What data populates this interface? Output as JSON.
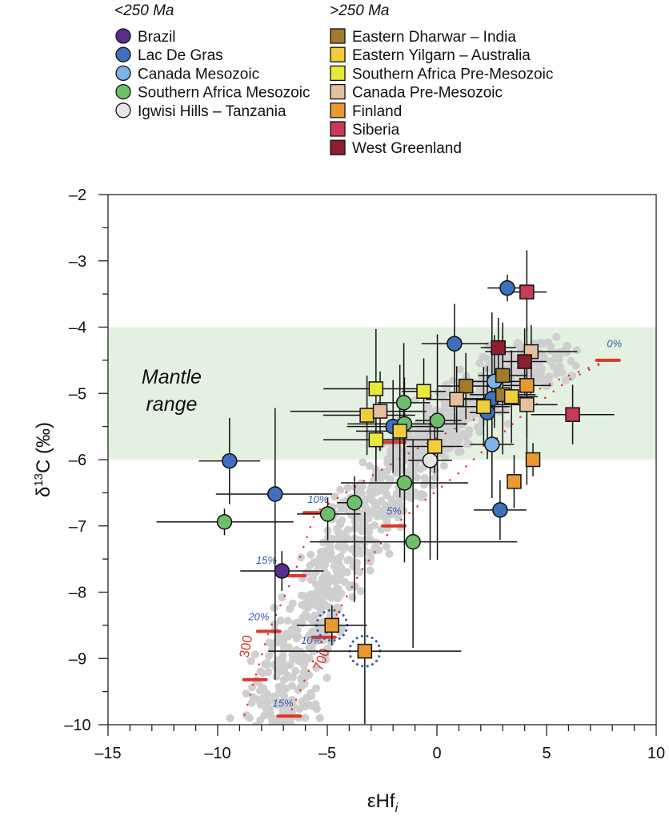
{
  "legend": {
    "groups": [
      {
        "title": "<250 Ma",
        "marker": "circle",
        "items": [
          "Brazil",
          "Lac De Gras",
          "Canada Mesozoic",
          "Southern Africa Mesozoic",
          "Igwisi Hills – Tanzania"
        ]
      },
      {
        "title": ">250 Ma",
        "marker": "square",
        "items": [
          "Eastern Dharwar – India",
          "Eastern Yilgarn – Australia",
          "Southern Africa Pre-Mesozoic",
          "Canada Pre-Mesozoic",
          "Finland",
          "Siberia",
          "West Greenland"
        ]
      }
    ]
  },
  "chart_data": {
    "type": "scatter",
    "xlabel": "εHf",
    "xlabel_sub": "i",
    "ylabel": "δ",
    "ylabel_sup": "13",
    "ylabel_rest": "C (‰)",
    "xlim": [
      -15,
      10
    ],
    "ylim": [
      -10,
      -2
    ],
    "xticks": [
      -15,
      -10,
      -5,
      0,
      5,
      10
    ],
    "xtick_labels": [
      "–15",
      "–10",
      "–5",
      "0",
      "5",
      "10"
    ],
    "yticks": [
      -2,
      -3,
      -4,
      -5,
      -6,
      -7,
      -8,
      -9,
      -10
    ],
    "ytick_labels": [
      "–2",
      "–3",
      "–4",
      "–5",
      "–6",
      "–7",
      "–8",
      "–9",
      "–10"
    ],
    "grid": false,
    "legend_placement": "top",
    "mantle_range": {
      "label_line1": "Mantle",
      "label_line2": "range",
      "y_from": -6,
      "y_to": -4,
      "color": "#e3f1e1",
      "label_x": -12.1,
      "label_y": -4.95
    },
    "background_cloud_color": "#cfcfcf",
    "model_curves": [
      {
        "label": "300",
        "color": "#e0352b",
        "label_x": -8.6,
        "label_y": -9.0,
        "label_rotate": -80,
        "path": [
          [
            7.8,
            -4.5
          ],
          [
            5.5,
            -4.8
          ],
          [
            3,
            -5.2
          ],
          [
            1,
            -5.5
          ],
          [
            -1,
            -5.85
          ],
          [
            -3,
            -6.25
          ],
          [
            -5.55,
            -6.8
          ],
          [
            -6.53,
            -7.75
          ],
          [
            -7.67,
            -8.59
          ],
          [
            -8.3,
            -9.3
          ],
          [
            -8.9,
            -10
          ]
        ]
      },
      {
        "label": "700",
        "color": "#e0352b",
        "label_x": -5.25,
        "label_y": -9.2,
        "label_rotate": -70,
        "path": [
          [
            7.8,
            -4.5
          ],
          [
            6,
            -4.8
          ],
          [
            4,
            -5.3
          ],
          [
            2.5,
            -5.75
          ],
          [
            1,
            -6.2
          ],
          [
            -0.5,
            -6.6
          ],
          [
            -1.97,
            -7.0
          ],
          [
            -3.5,
            -7.7
          ],
          [
            -5.15,
            -8.68
          ],
          [
            -6.0,
            -9.3
          ],
          [
            -6.74,
            -9.87
          ]
        ]
      }
    ],
    "model_marks": [
      {
        "label": "0%",
        "x": 7.8,
        "y": -4.5,
        "label_x": 7.75,
        "label_y": -4.3
      },
      {
        "label": "10%",
        "x": -5.55,
        "y": -6.8,
        "label_x": -5.9,
        "label_y": -6.65
      },
      {
        "label": "5%",
        "x": -1.97,
        "y": -7.0,
        "label_x": -2.3,
        "label_y": -6.83
      },
      {
        "label": "15%",
        "x": -6.53,
        "y": -7.75,
        "label_x": -8.25,
        "label_y": -7.57
      },
      {
        "label": "20%",
        "x": -7.67,
        "y": -8.59,
        "label_x": -8.6,
        "label_y": -8.42
      },
      {
        "label": "10%",
        "x": -5.15,
        "y": -8.68,
        "label_x": -6.2,
        "label_y": -8.78
      },
      {
        "label": "15%",
        "x": -6.74,
        "y": -9.87,
        "label_x": -7.5,
        "label_y": -9.73
      },
      {
        "label": "",
        "x": -8.3,
        "y": -9.32
      },
      {
        "label": "",
        "x": -1.97,
        "y": -5.74
      }
    ],
    "highlight_rings": [
      {
        "x": -4.79,
        "y": -8.5
      },
      {
        "x": -3.29,
        "y": -8.89
      }
    ],
    "series": [
      {
        "name": "Brazil",
        "marker": "circle",
        "color": "#5b2d8e",
        "points": [
          {
            "x": -7.07,
            "y": -7.68,
            "xerr": [
              1.9,
              1.9
            ],
            "yerr": [
              0.3,
              0.3
            ]
          }
        ]
      },
      {
        "name": "Lac De Gras",
        "marker": "circle",
        "color": "#3f6fbf",
        "points": [
          {
            "x": 3.21,
            "y": -3.41,
            "xerr": [
              0.9,
              0.85
            ],
            "yerr": [
              0.2,
              0.2
            ]
          },
          {
            "x": 0.8,
            "y": -4.25,
            "xerr": [
              1.5,
              1.55
            ],
            "yerr": [
              1.2,
              0.6
            ]
          },
          {
            "x": 2.51,
            "y": -5.08,
            "xerr": [
              1.4,
              1.2
            ],
            "yerr": [
              1.5,
              1.3
            ]
          },
          {
            "x": 2.3,
            "y": -5.29,
            "xerr": [
              0.8,
              1.0
            ],
            "yerr": [
              0.7,
              0.7
            ]
          },
          {
            "x": -2.0,
            "y": -5.5,
            "xerr": [
              2.1,
              2.1
            ],
            "yerr": [
              0.7,
              0.7
            ]
          },
          {
            "x": -9.46,
            "y": -6.02,
            "xerr": [
              1.4,
              1.4
            ],
            "yerr": [
              0.65,
              0.65
            ]
          },
          {
            "x": -7.38,
            "y": -6.52,
            "xerr": [
              2.7,
              2.6
            ],
            "yerr": [
              2.8,
              1.3
            ]
          },
          {
            "x": 2.88,
            "y": -6.76,
            "xerr": [
              1.2,
              1.2
            ],
            "yerr": [
              0.45,
              0.45
            ]
          }
        ]
      },
      {
        "name": "Canada Mesozoic",
        "marker": "circle",
        "color": "#7fb2e5",
        "points": [
          {
            "x": 2.62,
            "y": -4.82,
            "xerr": [
              1.3,
              1.3
            ],
            "yerr": [
              0.7,
              0.7
            ]
          },
          {
            "x": 2.51,
            "y": -5.77,
            "xerr": [
              1.0,
              1.0
            ],
            "yerr": [
              0.6,
              0.6
            ]
          }
        ]
      },
      {
        "name": "Southern Africa Mesozoic",
        "marker": "circle",
        "color": "#6fbf6a",
        "points": [
          {
            "x": -1.51,
            "y": -5.14,
            "xerr": [
              1.2,
              1.2
            ],
            "yerr": [
              1.2,
              0.9
            ]
          },
          {
            "x": -1.48,
            "y": -5.46,
            "xerr": [
              2.6,
              2.85
            ],
            "yerr": [
              0.7,
              0.7
            ]
          },
          {
            "x": 0.02,
            "y": -5.41,
            "xerr": [
              1.0,
              1.1
            ],
            "yerr": [
              2.1,
              1.3
            ]
          },
          {
            "x": -1.48,
            "y": -6.35,
            "xerr": [
              2.9,
              2.9
            ],
            "yerr": [
              1.2,
              1.0
            ]
          },
          {
            "x": -3.76,
            "y": -6.65,
            "xerr": [
              0.8,
              0.35
            ],
            "yerr": [
              1.5,
              0.4
            ]
          },
          {
            "x": -4.98,
            "y": -6.82,
            "xerr": [
              1.4,
              1.5
            ],
            "yerr": [
              0.4,
              0.25
            ]
          },
          {
            "x": -9.69,
            "y": -6.94,
            "xerr": [
              3.1,
              3.15
            ],
            "yerr": [
              0.2,
              0.2
            ]
          },
          {
            "x": -1.09,
            "y": -7.24,
            "xerr": [
              4.7,
              4.75
            ],
            "yerr": [
              1.6,
              1.55
            ]
          }
        ]
      },
      {
        "name": "Igwisi Hills – Tanzania",
        "marker": "circle",
        "color": "#e6e6e6",
        "points": [
          {
            "x": -0.31,
            "y": -6.01,
            "xerr": [
              1.0,
              1.0
            ],
            "yerr": [
              1.5,
              0.66
            ]
          }
        ]
      },
      {
        "name": "Eastern Dharwar – India",
        "marker": "square",
        "color": "#a47a2c",
        "points": [
          {
            "x": 1.32,
            "y": -4.89,
            "xerr": [
              1.3,
              1.6
            ],
            "yerr": [
              0.5,
              0.5
            ]
          },
          {
            "x": 3.0,
            "y": -4.73,
            "xerr": [
              1.1,
              1.1
            ],
            "yerr": [
              0.8,
              0.8
            ]
          },
          {
            "x": 3.0,
            "y": -5.02,
            "xerr": [
              1.5,
              1.5
            ],
            "yerr": [
              0.9,
              0.9
            ]
          }
        ]
      },
      {
        "name": "Eastern Yilgarn – Australia",
        "marker": "square",
        "color": "#f2cd3a",
        "points": [
          {
            "x": -3.19,
            "y": -5.33,
            "xerr": [
              2.0,
              2.2
            ],
            "yerr": [
              0.6,
              0.6
            ]
          },
          {
            "x": -1.69,
            "y": -5.57,
            "xerr": [
              2.0,
              2.0
            ],
            "yerr": [
              1.0,
              1.0
            ]
          },
          {
            "x": -0.1,
            "y": -5.8,
            "xerr": [
              1.3,
              1.3
            ],
            "yerr": [
              0.4,
              0.4
            ]
          },
          {
            "x": 2.13,
            "y": -5.2,
            "xerr": [
              1.2,
              1.2
            ],
            "yerr": [
              0.6,
              0.6
            ]
          },
          {
            "x": 3.4,
            "y": -5.05,
            "xerr": [
              1.2,
              1.2
            ],
            "yerr": [
              0.7,
              0.7
            ]
          }
        ]
      },
      {
        "name": "Southern Africa Pre-Mesozoic",
        "marker": "square",
        "color": "#e8e83a",
        "points": [
          {
            "x": -2.78,
            "y": -4.93,
            "xerr": [
              2.4,
              2.5
            ],
            "yerr": [
              1.4,
              0.9
            ]
          },
          {
            "x": -0.6,
            "y": -4.97,
            "xerr": [
              1.0,
              1.0
            ],
            "yerr": [
              0.5,
              0.5
            ]
          },
          {
            "x": -2.78,
            "y": -5.7,
            "xerr": [
              2.4,
              2.6
            ],
            "yerr": [
              0.3,
              0.3
            ]
          }
        ]
      },
      {
        "name": "Canada Pre-Mesozoic",
        "marker": "square",
        "color": "#e3c0a0",
        "points": [
          {
            "x": -2.59,
            "y": -5.27,
            "xerr": [
              4.1,
              2.1
            ],
            "yerr": [
              0.6,
              0.6
            ]
          },
          {
            "x": 0.9,
            "y": -5.09,
            "xerr": [
              1.4,
              1.4
            ],
            "yerr": [
              0.5,
              0.5
            ]
          },
          {
            "x": 4.3,
            "y": -4.37,
            "xerr": [
              2.1,
              2.1
            ],
            "yerr": [
              0.4,
              0.4
            ]
          },
          {
            "x": 4.1,
            "y": -5.17,
            "xerr": [
              1.4,
              1.4
            ],
            "yerr": [
              0.5,
              0.5
            ]
          }
        ]
      },
      {
        "name": "Finland",
        "marker": "square",
        "color": "#e89a30",
        "points": [
          {
            "x": 4.1,
            "y": -4.88,
            "xerr": [
              1.1,
              1.1
            ],
            "yerr": [
              1.5,
              0.9
            ]
          },
          {
            "x": 4.38,
            "y": -6.0,
            "xerr": [
              0.3,
              0.3
            ],
            "yerr": [
              0.25,
              0.25
            ]
          },
          {
            "x": 3.52,
            "y": -6.33,
            "xerr": [
              0.3,
              0.3
            ],
            "yerr": [
              0.4,
              0.4
            ]
          },
          {
            "x": -4.79,
            "y": -8.5,
            "xerr": [
              1.6,
              1.6
            ],
            "yerr": [
              0.3,
              0.3
            ]
          },
          {
            "x": -3.29,
            "y": -8.89,
            "xerr": [
              4.4,
              4.4
            ],
            "yerr": [
              1.1,
              2.1
            ]
          }
        ]
      },
      {
        "name": "Siberia",
        "marker": "square",
        "color": "#c83a55",
        "points": [
          {
            "x": 4.1,
            "y": -3.47,
            "xerr": [
              0.9,
              0.9
            ],
            "yerr": [
              0.6,
              0.63
            ]
          },
          {
            "x": 6.19,
            "y": -5.32,
            "xerr": [
              1.9,
              1.9
            ],
            "yerr": [
              0.45,
              0.45
            ]
          }
        ]
      },
      {
        "name": "West Greenland",
        "marker": "square",
        "color": "#8c1f2f",
        "points": [
          {
            "x": 2.8,
            "y": -4.31,
            "xerr": [
              0.8,
              0.8
            ],
            "yerr": [
              0.45,
              0.45
            ]
          },
          {
            "x": 4.0,
            "y": -4.52,
            "xerr": [
              1.0,
              1.0
            ],
            "yerr": [
              0.5,
              0.5
            ]
          }
        ]
      }
    ]
  }
}
